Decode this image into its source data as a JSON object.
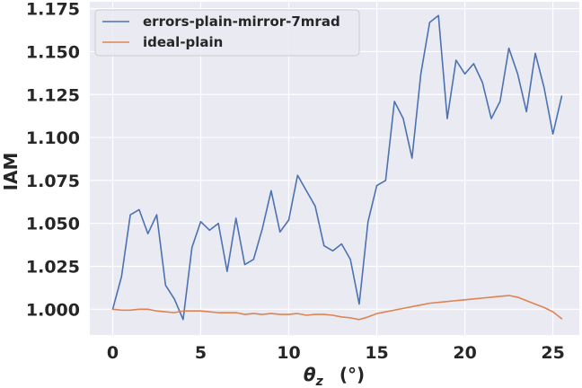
{
  "chart_data": {
    "type": "line",
    "xlabel": "θz (°)",
    "xlabel_parts": {
      "symbol": "θ",
      "subscript": "z",
      "unit": "(°)"
    },
    "ylabel": "IAM",
    "xlim": [
      -1.3,
      26.5
    ],
    "ylim": [
      0.985,
      1.179
    ],
    "xticks": [
      0,
      5,
      10,
      15,
      20,
      25
    ],
    "xtick_labels": [
      "0",
      "5",
      "10",
      "15",
      "20",
      "25"
    ],
    "yticks": [
      1.0,
      1.025,
      1.05,
      1.075,
      1.1,
      1.125,
      1.15,
      1.175
    ],
    "ytick_labels": [
      "1.000",
      "1.025",
      "1.050",
      "1.075",
      "1.100",
      "1.125",
      "1.150",
      "1.175"
    ],
    "grid": true,
    "legend_position": "top-left",
    "x": [
      0,
      0.5,
      1,
      1.5,
      2,
      2.5,
      3,
      3.5,
      4,
      4.5,
      5,
      5.5,
      6,
      6.5,
      7,
      7.5,
      8,
      8.5,
      9,
      9.5,
      10,
      10.5,
      11,
      11.5,
      12,
      12.5,
      13,
      13.5,
      14,
      14.5,
      15,
      15.5,
      16,
      16.5,
      17,
      17.5,
      18,
      18.5,
      19,
      19.5,
      20,
      20.5,
      21,
      21.5,
      22,
      22.5,
      23,
      23.5,
      24,
      24.5,
      25,
      25.5
    ],
    "series": [
      {
        "name": "errors-plain-mirror-7mrad",
        "color": "#4c72b0",
        "values": [
          1.0,
          1.019,
          1.055,
          1.058,
          1.044,
          1.055,
          1.014,
          1.006,
          0.994,
          1.036,
          1.051,
          1.046,
          1.05,
          1.022,
          1.053,
          1.026,
          1.029,
          1.047,
          1.069,
          1.045,
          1.052,
          1.078,
          1.069,
          1.06,
          1.037,
          1.034,
          1.038,
          1.029,
          1.003,
          1.051,
          1.072,
          1.075,
          1.121,
          1.111,
          1.088,
          1.137,
          1.167,
          1.171,
          1.111,
          1.145,
          1.137,
          1.143,
          1.132,
          1.111,
          1.121,
          1.152,
          1.137,
          1.115,
          1.149,
          1.129,
          1.102,
          1.124
        ]
      },
      {
        "name": "ideal-plain",
        "color": "#dd8452",
        "values": [
          1.0,
          0.9995,
          0.9995,
          1.0,
          1.0,
          0.999,
          0.9985,
          0.998,
          0.999,
          0.999,
          0.999,
          0.9985,
          0.998,
          0.998,
          0.998,
          0.997,
          0.9975,
          0.997,
          0.9975,
          0.997,
          0.997,
          0.9975,
          0.9965,
          0.997,
          0.997,
          0.9965,
          0.9955,
          0.995,
          0.994,
          0.9955,
          0.9975,
          0.9985,
          0.9995,
          1.0005,
          1.0015,
          1.0025,
          1.0035,
          1.004,
          1.0045,
          1.005,
          1.0055,
          1.006,
          1.0065,
          1.007,
          1.0075,
          1.008,
          1.007,
          1.005,
          1.003,
          1.001,
          0.9985,
          0.9945
        ]
      }
    ]
  }
}
